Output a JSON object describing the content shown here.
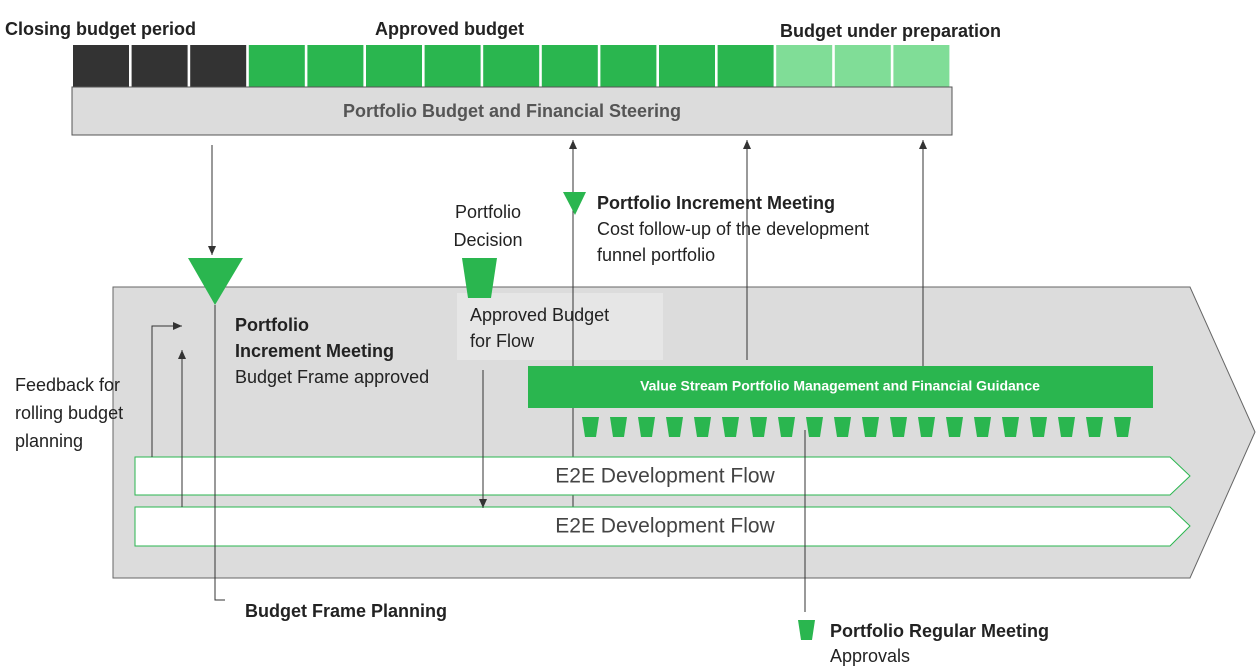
{
  "header": {
    "closing": "Closing budget period",
    "approved": "Approved budget",
    "preparation": "Budget under preparation"
  },
  "steering": "Portfolio Budget  and Financial Steering",
  "increment_top": {
    "title": "Portfolio Increment Meeting",
    "line1": "Cost follow-up of the development",
    "line2": "funnel portfolio"
  },
  "decision": {
    "line1": "Portfolio",
    "line2": "Decision"
  },
  "approved_flow": {
    "line1": "Approved Budget",
    "line2": "for Flow"
  },
  "increment_left": {
    "line1": "Portfolio",
    "line2": "Increment Meeting",
    "line3": "Budget Frame approved"
  },
  "feedback": {
    "line1": "Feedback for",
    "line2": "rolling budget",
    "line3": "planning"
  },
  "guidance": "Value Stream Portfolio Management and Financial Guidance",
  "flows": [
    "E2E Development Flow",
    "E2E Development Flow"
  ],
  "frame_planning": "Budget Frame Planning",
  "regular": {
    "title": "Portfolio Regular Meeting",
    "line1": "Approvals"
  }
}
